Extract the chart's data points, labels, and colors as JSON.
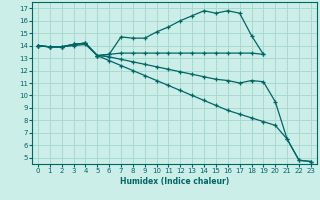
{
  "xlabel": "Humidex (Indice chaleur)",
  "bg_color": "#cceee8",
  "grid_color": "#aad8d0",
  "line_color": "#006666",
  "xlim": [
    -0.5,
    23.5
  ],
  "ylim": [
    4.5,
    17.5
  ],
  "xticks": [
    0,
    1,
    2,
    3,
    4,
    5,
    6,
    7,
    8,
    9,
    10,
    11,
    12,
    13,
    14,
    15,
    16,
    17,
    18,
    19,
    20,
    21,
    22,
    23
  ],
  "yticks": [
    5,
    6,
    7,
    8,
    9,
    10,
    11,
    12,
    13,
    14,
    15,
    16,
    17
  ],
  "series": [
    {
      "x": [
        0,
        1,
        2,
        3,
        4,
        5,
        6,
        7,
        8,
        9,
        10,
        11,
        12,
        13,
        14,
        15,
        16,
        17,
        18,
        19
      ],
      "y": [
        14.0,
        13.9,
        13.9,
        14.1,
        14.2,
        13.2,
        13.3,
        14.7,
        14.6,
        14.6,
        15.1,
        15.5,
        16.0,
        16.4,
        16.8,
        16.6,
        16.8,
        16.6,
        14.8,
        13.3
      ]
    },
    {
      "x": [
        0,
        1,
        2,
        3,
        4,
        5,
        6,
        7,
        8,
        9,
        10,
        11,
        12,
        13,
        14,
        15,
        16,
        17,
        18,
        19
      ],
      "y": [
        14.0,
        13.9,
        13.9,
        14.1,
        14.2,
        13.2,
        13.3,
        13.4,
        13.4,
        13.4,
        13.4,
        13.4,
        13.4,
        13.4,
        13.4,
        13.4,
        13.4,
        13.4,
        13.4,
        13.3
      ]
    },
    {
      "x": [
        0,
        1,
        2,
        3,
        4,
        5,
        6,
        7,
        8,
        9,
        10,
        11,
        12,
        13,
        14,
        15,
        16,
        17,
        18,
        19,
        20,
        21,
        22,
        23
      ],
      "y": [
        14.0,
        13.9,
        13.9,
        14.1,
        14.2,
        13.2,
        13.1,
        12.9,
        12.7,
        12.5,
        12.3,
        12.1,
        11.9,
        11.7,
        11.5,
        11.3,
        11.2,
        11.0,
        11.2,
        11.1,
        9.5,
        6.5,
        4.8,
        4.7
      ]
    },
    {
      "x": [
        0,
        1,
        2,
        3,
        4,
        5,
        6,
        7,
        8,
        9,
        10,
        11,
        12,
        13,
        14,
        15,
        16,
        17,
        18,
        19,
        20,
        21,
        22,
        23
      ],
      "y": [
        14.0,
        13.9,
        13.9,
        14.0,
        14.1,
        13.2,
        12.8,
        12.4,
        12.0,
        11.6,
        11.2,
        10.8,
        10.4,
        10.0,
        9.6,
        9.2,
        8.8,
        8.5,
        8.2,
        7.9,
        7.6,
        6.5,
        4.8,
        4.7
      ]
    }
  ]
}
